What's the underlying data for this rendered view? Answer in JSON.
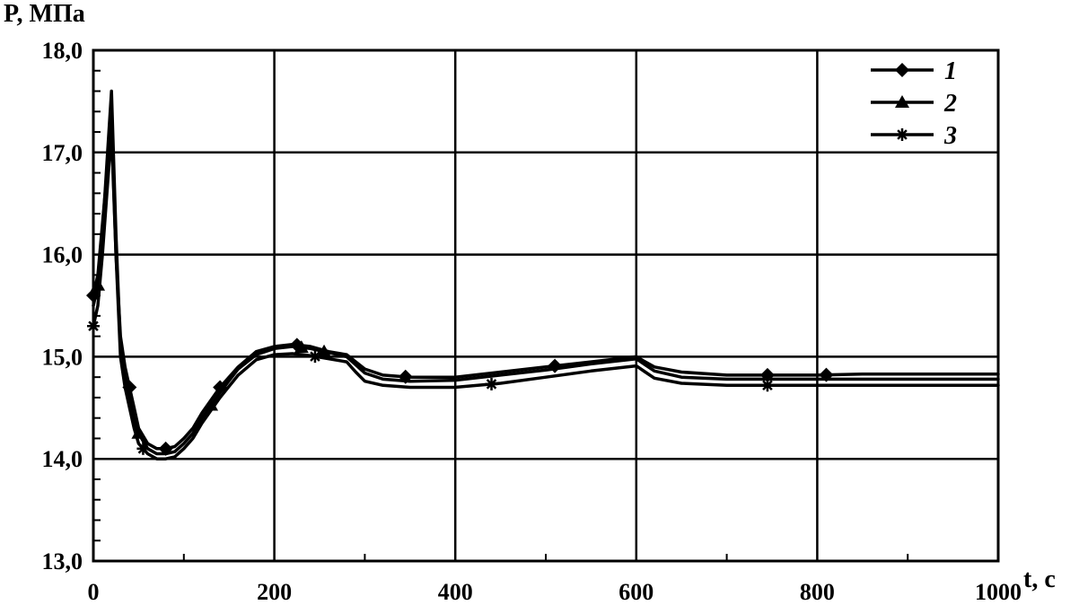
{
  "chart_data": {
    "type": "line",
    "title": "",
    "ylabel": "P, МПа",
    "xlabel": "t, c",
    "xlim": [
      0,
      1000
    ],
    "ylim": [
      13.0,
      18.0
    ],
    "x_ticks": [
      0,
      200,
      400,
      600,
      800,
      1000
    ],
    "x_tick_labels": [
      "0",
      "200",
      "400",
      "600",
      "800",
      "1000"
    ],
    "y_ticks": [
      13.0,
      14.0,
      15.0,
      16.0,
      17.0,
      18.0
    ],
    "y_tick_labels": [
      "13,0",
      "14,0",
      "15,0",
      "16,0",
      "17,0",
      "18,0"
    ],
    "grid": true,
    "legend_position": "top-right",
    "series": [
      {
        "name": "1",
        "marker": "diamond",
        "x": [
          0,
          5,
          10,
          15,
          20,
          25,
          30,
          35,
          40,
          45,
          50,
          60,
          70,
          80,
          90,
          100,
          110,
          120,
          140,
          160,
          180,
          200,
          220,
          240,
          260,
          280,
          290,
          300,
          320,
          350,
          400,
          450,
          500,
          550,
          600,
          610,
          620,
          650,
          700,
          750,
          800,
          850,
          900,
          950,
          1000
        ],
        "y": [
          15.6,
          15.8,
          16.3,
          16.8,
          17.3,
          16.0,
          15.2,
          14.9,
          14.7,
          14.5,
          14.3,
          14.15,
          14.1,
          14.1,
          14.12,
          14.2,
          14.3,
          14.45,
          14.7,
          14.9,
          15.05,
          15.1,
          15.12,
          15.1,
          15.05,
          15.02,
          14.95,
          14.88,
          14.82,
          14.8,
          14.8,
          14.85,
          14.9,
          14.95,
          15.0,
          14.95,
          14.9,
          14.85,
          14.82,
          14.82,
          14.82,
          14.83,
          14.83,
          14.83,
          14.83
        ],
        "marker_x": [
          0,
          40,
          80,
          140,
          225,
          345,
          510,
          745,
          810
        ]
      },
      {
        "name": "2",
        "marker": "triangle",
        "x": [
          0,
          5,
          10,
          15,
          20,
          25,
          30,
          35,
          40,
          45,
          50,
          60,
          70,
          80,
          90,
          100,
          110,
          120,
          140,
          160,
          180,
          200,
          220,
          240,
          260,
          280,
          290,
          300,
          320,
          350,
          400,
          450,
          500,
          550,
          600,
          610,
          620,
          650,
          700,
          750,
          800,
          850,
          900,
          950,
          1000
        ],
        "y": [
          15.5,
          15.7,
          16.2,
          16.9,
          17.6,
          16.2,
          15.1,
          14.8,
          14.6,
          14.4,
          14.25,
          14.1,
          14.05,
          14.05,
          14.07,
          14.15,
          14.25,
          14.4,
          14.65,
          14.88,
          15.02,
          15.08,
          15.1,
          15.08,
          15.04,
          15.0,
          14.92,
          14.84,
          14.78,
          14.76,
          14.77,
          14.82,
          14.87,
          14.93,
          14.98,
          14.92,
          14.86,
          14.8,
          14.78,
          14.78,
          14.78,
          14.78,
          14.78,
          14.78,
          14.78
        ],
        "marker_x": [
          5,
          50,
          130,
          230,
          255
        ]
      },
      {
        "name": "3",
        "marker": "asterisk",
        "x": [
          0,
          5,
          10,
          15,
          20,
          25,
          30,
          35,
          40,
          45,
          50,
          60,
          70,
          80,
          90,
          100,
          110,
          120,
          140,
          160,
          180,
          200,
          220,
          240,
          260,
          280,
          290,
          300,
          320,
          350,
          400,
          450,
          500,
          550,
          600,
          610,
          620,
          650,
          700,
          750,
          800,
          850,
          900,
          950,
          1000
        ],
        "y": [
          15.3,
          15.5,
          16.0,
          16.6,
          17.2,
          16.0,
          15.0,
          14.7,
          14.5,
          14.3,
          14.15,
          14.05,
          14.0,
          14.0,
          14.02,
          14.1,
          14.2,
          14.35,
          14.6,
          14.82,
          14.97,
          15.02,
          15.03,
          15.01,
          14.98,
          14.95,
          14.85,
          14.76,
          14.72,
          14.7,
          14.7,
          14.74,
          14.8,
          14.86,
          14.91,
          14.85,
          14.79,
          14.74,
          14.72,
          14.72,
          14.72,
          14.72,
          14.72,
          14.72,
          14.72
        ],
        "marker_x": [
          0,
          55,
          245,
          440,
          745
        ]
      }
    ]
  }
}
